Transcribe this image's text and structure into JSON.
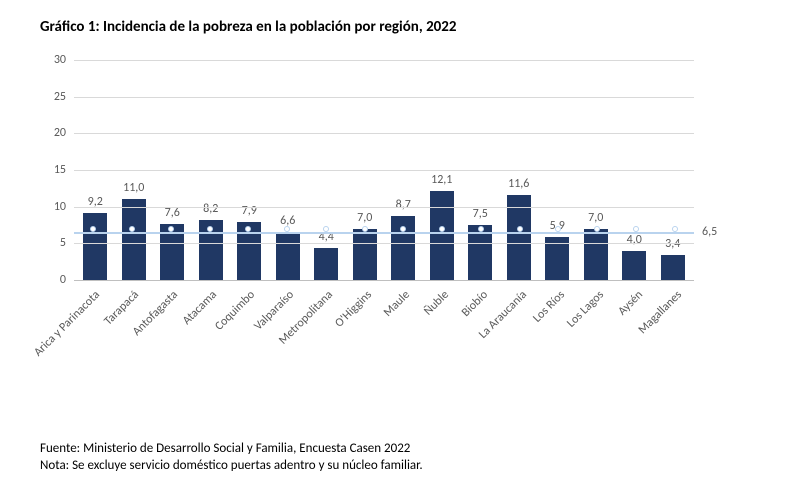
{
  "title": "Gráfico 1: Incidencia de la pobreza en la población por región, 2022",
  "title_fontsize": 15,
  "footer_source": "Fuente: Ministerio de Desarrollo Social y Familia, Encuesta Casen 2022",
  "footer_note": "Nota: Se excluye servicio doméstico puertas adentro y su núcleo familiar.",
  "chart": {
    "type": "bar",
    "background_color": "#ffffff",
    "bar_color": "#203864",
    "grid_color": "#d9d9d9",
    "axis_color": "#bfbfbf",
    "label_color": "#595959",
    "label_fontsize": 12,
    "ylim": [
      0,
      30
    ],
    "ytick_step": 5,
    "yticks": [
      0,
      5,
      10,
      15,
      20,
      25,
      30
    ],
    "bar_width": 0.62,
    "reference_line": {
      "value": 6.5,
      "label": "6,5",
      "color": "#b9d3ee",
      "width": 2,
      "marker": {
        "shape": "circle",
        "fill": "#ffffff",
        "stroke": "#b9d3ee",
        "size": 6
      }
    },
    "categories": [
      "Arica y Parinacota",
      "Tarapacá",
      "Antofagasta",
      "Atacama",
      "Coquimbo",
      "Valparaíso",
      "Metropolitana",
      "O'Higgins",
      "Maule",
      "Ñuble",
      "Biobío",
      "La Araucanía",
      "Los Ríos",
      "Los Lagos",
      "Aysén",
      "Magallanes"
    ],
    "values": [
      9.2,
      11.0,
      7.6,
      8.2,
      7.9,
      6.6,
      4.4,
      7.0,
      8.7,
      12.1,
      7.5,
      11.6,
      5.9,
      7.0,
      4.0,
      3.4
    ],
    "value_labels": [
      "9,2",
      "11,0",
      "7,6",
      "8,2",
      "7,9",
      "6,6",
      "4,4",
      "7,0",
      "8,7",
      "12,1",
      "7,5",
      "11,6",
      "5,9",
      "7,0",
      "4,0",
      "3,4"
    ]
  }
}
